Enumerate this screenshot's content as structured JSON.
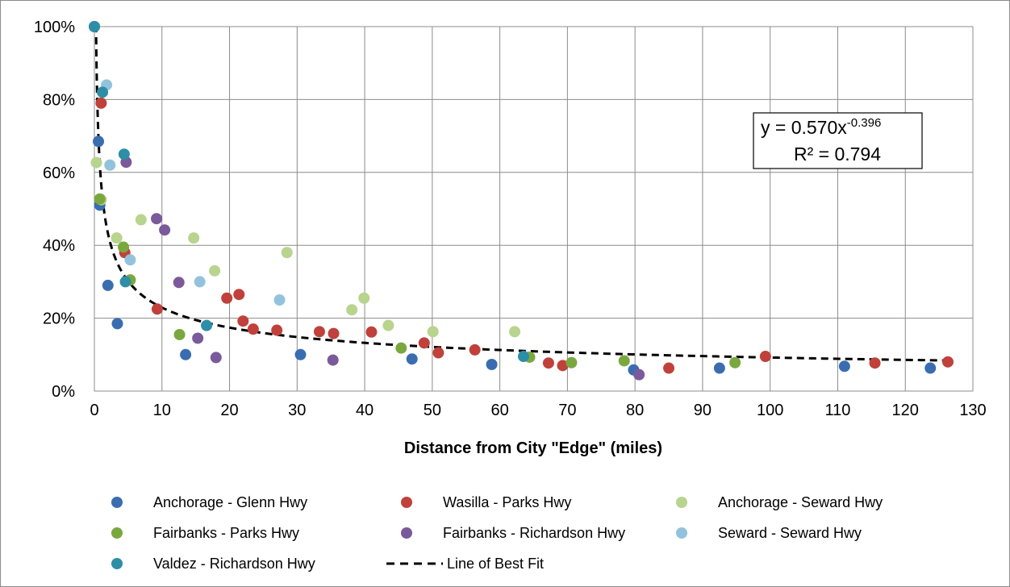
{
  "chart_data": {
    "type": "scatter",
    "title": "",
    "xlabel": "Distance from City \"Edge\" (miles)",
    "ylabel": "",
    "xlim": [
      0,
      130
    ],
    "ylim": [
      0,
      1
    ],
    "x_ticks": [
      "0",
      "10",
      "20",
      "30",
      "40",
      "50",
      "60",
      "70",
      "80",
      "90",
      "100",
      "110",
      "120",
      "130"
    ],
    "y_ticks": [
      "0%",
      "20%",
      "40%",
      "60%",
      "80%",
      "100%"
    ],
    "grid": true,
    "legend_position": "bottom",
    "series": [
      {
        "name": "Anchorage - Glenn Hwy",
        "color": "#3a6db0",
        "points": [
          [
            0,
            1.0
          ],
          [
            0.6,
            0.685
          ],
          [
            0.8,
            0.51
          ],
          [
            2,
            0.29
          ],
          [
            3.4,
            0.185
          ],
          [
            13.5,
            0.1
          ],
          [
            30.5,
            0.1
          ],
          [
            47,
            0.088
          ],
          [
            58.8,
            0.073
          ],
          [
            79.8,
            0.058
          ],
          [
            92.5,
            0.063
          ],
          [
            111,
            0.068
          ],
          [
            123.7,
            0.063
          ]
        ]
      },
      {
        "name": "Wasilla - Parks Hwy",
        "color": "#c0413b",
        "points": [
          [
            1,
            0.79
          ],
          [
            4.5,
            0.38
          ],
          [
            9.3,
            0.225
          ],
          [
            19.6,
            0.255
          ],
          [
            21.4,
            0.265
          ],
          [
            22,
            0.192
          ],
          [
            23.5,
            0.17
          ],
          [
            27,
            0.167
          ],
          [
            33.3,
            0.163
          ],
          [
            35.4,
            0.158
          ],
          [
            41,
            0.162
          ],
          [
            48.8,
            0.132
          ],
          [
            50.9,
            0.105
          ],
          [
            56.3,
            0.113
          ],
          [
            67.2,
            0.077
          ],
          [
            69.3,
            0.07
          ],
          [
            85,
            0.063
          ],
          [
            99.3,
            0.095
          ],
          [
            115.5,
            0.077
          ],
          [
            126.3,
            0.08
          ]
        ]
      },
      {
        "name": "Anchorage - Seward Hwy",
        "color": "#b8d48e",
        "points": [
          [
            0.3,
            0.627
          ],
          [
            1,
            0.525
          ],
          [
            3.3,
            0.42
          ],
          [
            6.9,
            0.47
          ],
          [
            14.7,
            0.42
          ],
          [
            17.8,
            0.33
          ],
          [
            28.5,
            0.38
          ],
          [
            38.1,
            0.223
          ],
          [
            39.9,
            0.255
          ],
          [
            43.5,
            0.18
          ],
          [
            50.1,
            0.163
          ],
          [
            62.2,
            0.163
          ]
        ]
      },
      {
        "name": "Fairbanks - Parks Hwy",
        "color": "#7aa83f",
        "points": [
          [
            0.8,
            0.527
          ],
          [
            4.3,
            0.395
          ],
          [
            5.3,
            0.305
          ],
          [
            12.6,
            0.155
          ],
          [
            45.4,
            0.118
          ],
          [
            64.4,
            0.093
          ],
          [
            70.6,
            0.078
          ],
          [
            78.4,
            0.083
          ],
          [
            94.8,
            0.078
          ]
        ]
      },
      {
        "name": "Fairbanks - Richardson Hwy",
        "color": "#7a5a9a",
        "points": [
          [
            4.7,
            0.628
          ],
          [
            9.2,
            0.473
          ],
          [
            10.4,
            0.442
          ],
          [
            12.5,
            0.298
          ],
          [
            15.3,
            0.145
          ],
          [
            18,
            0.092
          ],
          [
            35.3,
            0.085
          ],
          [
            80.6,
            0.045
          ]
        ]
      },
      {
        "name": "Seward - Seward Hwy",
        "color": "#93c3dc",
        "points": [
          [
            1.8,
            0.84
          ],
          [
            2.3,
            0.62
          ],
          [
            5.3,
            0.36
          ],
          [
            15.6,
            0.3
          ],
          [
            27.4,
            0.25
          ]
        ]
      },
      {
        "name": "Valdez - Richardson Hwy",
        "color": "#2d8ea6",
        "points": [
          [
            0,
            1.0
          ],
          [
            1.2,
            0.82
          ],
          [
            4.4,
            0.65
          ],
          [
            4.6,
            0.3
          ],
          [
            16.6,
            0.18
          ],
          [
            63.5,
            0.095
          ]
        ]
      }
    ],
    "fit": {
      "name": "Line of Best Fit",
      "a": 0.57,
      "b": -0.396,
      "color": "#000000"
    },
    "equation": {
      "main": "y = 0.570x",
      "exponent": "-0.396",
      "r2": "R² = 0.794"
    }
  }
}
